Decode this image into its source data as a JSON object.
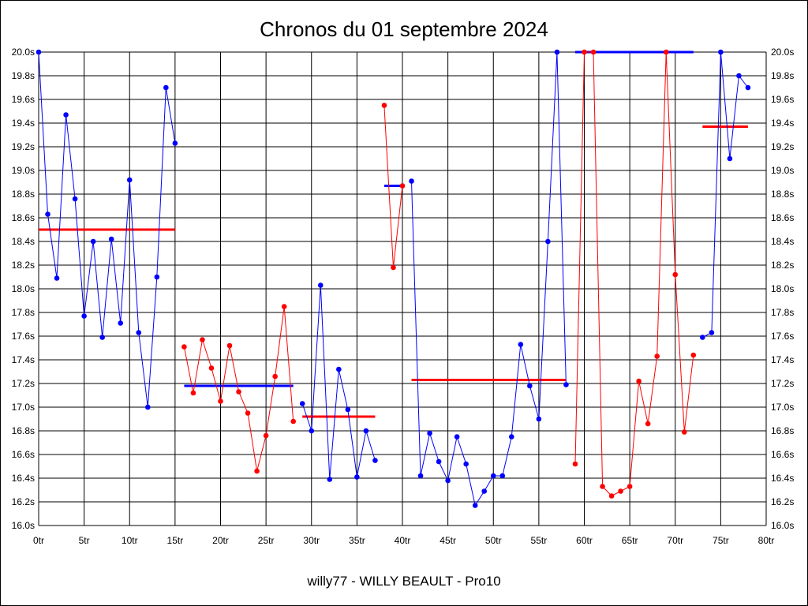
{
  "chart_data": {
    "type": "line",
    "title": "Chronos du 01 septembre 2024",
    "footer": "willy77 - WILLY BEAULT - Pro10",
    "x_ticks": [
      "0tr",
      "5tr",
      "10tr",
      "15tr",
      "20tr",
      "25tr",
      "30tr",
      "35tr",
      "40tr",
      "45tr",
      "50tr",
      "55tr",
      "60tr",
      "65tr",
      "70tr",
      "75tr",
      "80tr"
    ],
    "y_ticks": [
      "16.0s",
      "16.2s",
      "16.4s",
      "16.6s",
      "16.8s",
      "17.0s",
      "17.2s",
      "17.4s",
      "17.6s",
      "17.8s",
      "18.0s",
      "18.2s",
      "18.4s",
      "18.6s",
      "18.8s",
      "19.0s",
      "19.2s",
      "19.4s",
      "19.6s",
      "19.8s",
      "20.0s"
    ],
    "xlim": [
      0,
      80
    ],
    "ylim": [
      16.0,
      20.0
    ],
    "grid": true,
    "colors": {
      "blue": "#0000ff",
      "red": "#ff0000",
      "grid": "#000000"
    },
    "segments": [
      {
        "color": "blue",
        "x": [
          0,
          1,
          2,
          3,
          4,
          5,
          6,
          7,
          8,
          9,
          10,
          11,
          12,
          13,
          14,
          15
        ],
        "y": [
          20.0,
          18.63,
          18.09,
          19.47,
          18.76,
          17.77,
          18.4,
          17.59,
          18.42,
          17.71,
          18.92,
          17.63,
          17.0,
          18.1,
          19.7,
          19.23
        ]
      },
      {
        "color": "red",
        "x": [
          16,
          17,
          18,
          19,
          20,
          21,
          22,
          23,
          24,
          25,
          26,
          27,
          28
        ],
        "y": [
          17.51,
          17.12,
          17.57,
          17.33,
          17.05,
          17.52,
          17.13,
          16.95,
          16.46,
          16.76,
          17.26,
          17.85,
          16.88
        ]
      },
      {
        "color": "blue",
        "x": [
          29,
          30,
          31,
          32,
          33,
          34,
          35,
          36,
          37
        ],
        "y": [
          17.03,
          16.8,
          18.03,
          16.39,
          17.32,
          16.98,
          16.41,
          16.8,
          16.55
        ]
      },
      {
        "color": "red",
        "x": [
          38,
          39,
          40
        ],
        "y": [
          19.55,
          18.18,
          18.87
        ]
      },
      {
        "color": "blue",
        "x": [
          41,
          42,
          43,
          44,
          45,
          46,
          47,
          48,
          49,
          50,
          51,
          52,
          53,
          54,
          55,
          56,
          57,
          58
        ],
        "y": [
          18.91,
          16.42,
          16.78,
          16.54,
          16.38,
          16.75,
          16.52,
          16.17,
          16.29,
          16.42,
          16.42,
          16.75,
          17.53,
          17.18,
          16.9,
          18.4,
          20.0,
          17.19
        ]
      },
      {
        "color": "red",
        "x": [
          59,
          60,
          61,
          62,
          63,
          64,
          65,
          66,
          67,
          68,
          69,
          70,
          71,
          72
        ],
        "y": [
          16.52,
          20.0,
          20.0,
          16.33,
          16.25,
          16.29,
          16.33,
          17.22,
          16.86,
          17.43,
          20.0,
          18.12,
          16.79,
          17.44
        ]
      },
      {
        "color": "blue",
        "x": [
          73,
          74,
          75,
          76,
          77,
          78
        ],
        "y": [
          17.59,
          17.63,
          20.0,
          19.1,
          19.8,
          19.7
        ]
      }
    ],
    "averages": [
      {
        "color": "red",
        "x": [
          0,
          15
        ],
        "y": 18.5
      },
      {
        "color": "blue",
        "x": [
          16,
          28
        ],
        "y": 17.18
      },
      {
        "color": "red",
        "x": [
          29,
          37
        ],
        "y": 16.92
      },
      {
        "color": "blue",
        "x": [
          38,
          40
        ],
        "y": 18.87
      },
      {
        "color": "red",
        "x": [
          41,
          58
        ],
        "y": 17.23
      },
      {
        "color": "blue",
        "x": [
          59,
          72
        ],
        "y": 20.0
      },
      {
        "color": "red",
        "x": [
          73,
          78
        ],
        "y": 19.37
      }
    ]
  }
}
